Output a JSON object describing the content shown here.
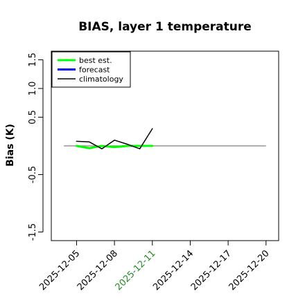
{
  "chart_data": {
    "type": "line",
    "title": "BIAS, layer 1 temperature",
    "ylabel": "Bias (K)",
    "xlabel": "",
    "ylim": [
      -1.65,
      1.65
    ],
    "xlim": [
      "2025-12-03",
      "2025-12-21"
    ],
    "yticks": [
      -1.5,
      -0.5,
      0.5,
      1.0,
      1.5
    ],
    "ytick_labels": [
      "-1.5",
      "-0.5",
      "0.5",
      "1.0",
      "1.5"
    ],
    "xticks": [
      "2025-12-05",
      "2025-12-08",
      "2025-12-11",
      "2025-12-14",
      "2025-12-17",
      "2025-12-20"
    ],
    "xtick_colors": [
      "#000000",
      "#000000",
      "#228B22",
      "#000000",
      "#000000",
      "#000000"
    ],
    "grid": false,
    "legend_position": "top-left",
    "zero_line": {
      "y": 0,
      "x_from": "2025-12-04",
      "x_to": "2025-12-20",
      "color": "#808080"
    },
    "series": [
      {
        "name": "best est.",
        "color": "#00FF00",
        "line_width": 3,
        "x": [
          "2025-12-05",
          "2025-12-06",
          "2025-12-07",
          "2025-12-08",
          "2025-12-09",
          "2025-12-10",
          "2025-12-11"
        ],
        "y": [
          0.0,
          -0.04,
          0.0,
          -0.02,
          0.0,
          0.0,
          0.0
        ]
      },
      {
        "name": "forecast",
        "color": "#0000FF",
        "line_width": 3,
        "x": [],
        "y": []
      },
      {
        "name": "climatology",
        "color": "#000000",
        "line_width": 1.5,
        "x": [
          "2025-12-05",
          "2025-12-06",
          "2025-12-07",
          "2025-12-08",
          "2025-12-09",
          "2025-12-10",
          "2025-12-11"
        ],
        "y": [
          0.08,
          0.07,
          -0.05,
          0.1,
          0.03,
          -0.05,
          0.3
        ]
      }
    ]
  }
}
